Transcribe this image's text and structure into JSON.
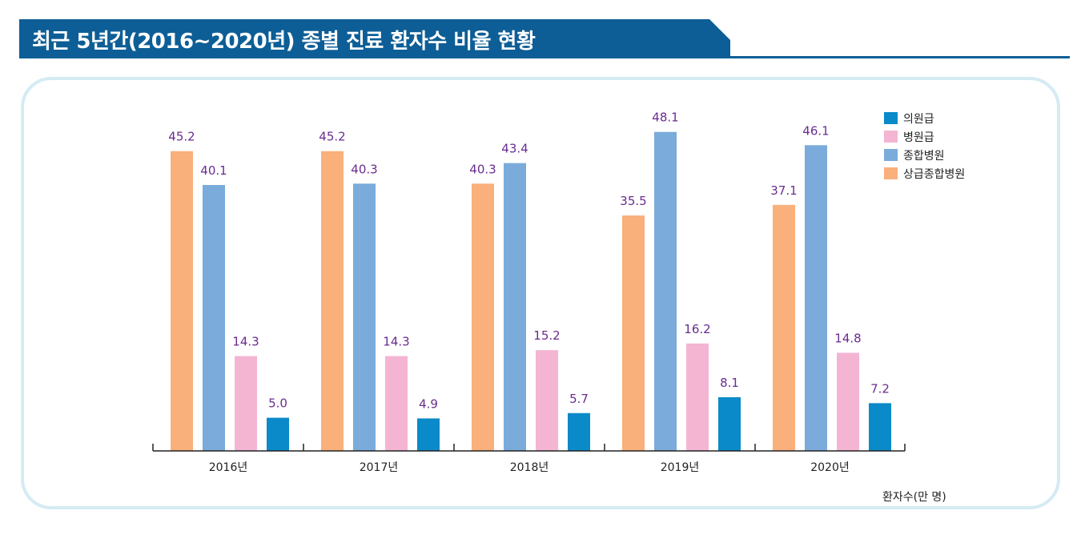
{
  "title": "최근 5년간(2016~2020년) 종별 진료 환자수 비율 현황",
  "unit_label": "환자수(만 명)",
  "colors": {
    "banner": "#0d5e96",
    "panel_border": "#d5ebf4",
    "value_label": "#6a2c8f",
    "series": [
      "#f9b07b",
      "#7aabdb",
      "#f4b5d3",
      "#0a8ac8"
    ]
  },
  "chart_data": {
    "type": "bar",
    "title": "최근 5년간(2016~2020년) 종별 진료 환자수 비율 현황",
    "xlabel": "",
    "ylabel": "환자수(만 명)",
    "ylim": [
      0,
      50
    ],
    "categories": [
      "2016년",
      "2017년",
      "2018년",
      "2019년",
      "2020년"
    ],
    "legend_order": [
      "의원급",
      "병원급",
      "종합병원",
      "상급종합병원"
    ],
    "legend_position": "top-right",
    "series": [
      {
        "name": "상급종합병원",
        "color": "#f9b07b",
        "values": [
          45.2,
          45.2,
          40.3,
          35.5,
          37.1
        ]
      },
      {
        "name": "종합병원",
        "color": "#7aabdb",
        "values": [
          40.1,
          40.3,
          43.4,
          48.1,
          46.1
        ]
      },
      {
        "name": "병원급",
        "color": "#f4b5d3",
        "values": [
          14.3,
          14.3,
          15.2,
          16.2,
          14.8
        ]
      },
      {
        "name": "의원급",
        "color": "#0a8ac8",
        "values": [
          5.0,
          4.9,
          5.7,
          8.1,
          7.2
        ]
      }
    ]
  }
}
